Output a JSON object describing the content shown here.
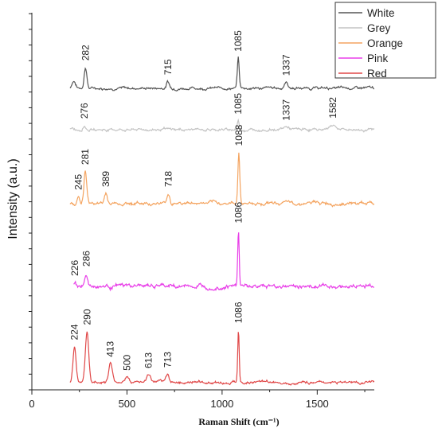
{
  "chart_data": {
    "type": "line",
    "title": "",
    "xlabel": "Raman Shift (cm⁻¹)",
    "ylabel": "Intensity (a.u.)",
    "xlim": [
      0,
      1800
    ],
    "x_ticks": [
      0,
      500,
      1000,
      1500
    ],
    "legend_position": "top-right",
    "grid": false,
    "series": [
      {
        "name": "White",
        "color": "#555555",
        "offset": 0.8,
        "noise": 0.004,
        "x_range": [
          200,
          1800
        ],
        "peaks": [
          {
            "x": 220,
            "h": 0.02,
            "w": 9
          },
          {
            "x": 282,
            "h": 0.056,
            "w": 7,
            "label": "282"
          },
          {
            "x": 715,
            "h": 0.018,
            "w": 7,
            "label": "715"
          },
          {
            "x": 1085,
            "h": 0.08,
            "w": 5,
            "label": "1085"
          },
          {
            "x": 1337,
            "h": 0.016,
            "w": 9,
            "label": "1337"
          }
        ]
      },
      {
        "name": "Grey",
        "color": "#c4c4c4",
        "offset": 0.69,
        "noise": 0.004,
        "x_range": [
          200,
          1800
        ],
        "peaks": [
          {
            "x": 276,
            "h": 0.012,
            "w": 8,
            "label": "276"
          },
          {
            "x": 1085,
            "h": 0.024,
            "w": 5,
            "label": "1085"
          },
          {
            "x": 1337,
            "h": 0.007,
            "w": 15,
            "label": "1337"
          },
          {
            "x": 1582,
            "h": 0.013,
            "w": 18,
            "label": "1582"
          }
        ]
      },
      {
        "name": "Orange",
        "color": "#f4a460",
        "offset": 0.495,
        "noise": 0.005,
        "x_range": [
          200,
          1800
        ],
        "peaks": [
          {
            "x": 245,
            "h": 0.018,
            "w": 6,
            "label": "245"
          },
          {
            "x": 281,
            "h": 0.085,
            "w": 7,
            "label": "281"
          },
          {
            "x": 389,
            "h": 0.026,
            "w": 7,
            "label": "389"
          },
          {
            "x": 718,
            "h": 0.026,
            "w": 7,
            "label": "718"
          },
          {
            "x": 1088,
            "h": 0.135,
            "w": 5,
            "label": "1088"
          }
        ]
      },
      {
        "name": "Pink",
        "color": "#e83ee8",
        "offset": 0.275,
        "noise": 0.006,
        "x_range": [
          220,
          1800
        ],
        "peaks": [
          {
            "x": 226,
            "h": 0.01,
            "w": 6,
            "label": "226"
          },
          {
            "x": 286,
            "h": 0.035,
            "w": 7,
            "label": "286"
          },
          {
            "x": 1086,
            "h": 0.15,
            "w": 4,
            "label": "1086"
          }
        ]
      },
      {
        "name": "Red",
        "color": "#e04848",
        "offset": 0.02,
        "noise": 0.004,
        "x_range": [
          200,
          1800
        ],
        "peaks": [
          {
            "x": 224,
            "h": 0.095,
            "w": 8,
            "label": "224"
          },
          {
            "x": 290,
            "h": 0.135,
            "w": 9,
            "label": "290"
          },
          {
            "x": 413,
            "h": 0.05,
            "w": 9,
            "label": "413"
          },
          {
            "x": 500,
            "h": 0.014,
            "w": 12,
            "label": "500"
          },
          {
            "x": 613,
            "h": 0.02,
            "w": 10,
            "label": "613"
          },
          {
            "x": 713,
            "h": 0.022,
            "w": 8,
            "label": "713"
          },
          {
            "x": 1086,
            "h": 0.14,
            "w": 4,
            "label": "1086"
          }
        ]
      }
    ]
  }
}
